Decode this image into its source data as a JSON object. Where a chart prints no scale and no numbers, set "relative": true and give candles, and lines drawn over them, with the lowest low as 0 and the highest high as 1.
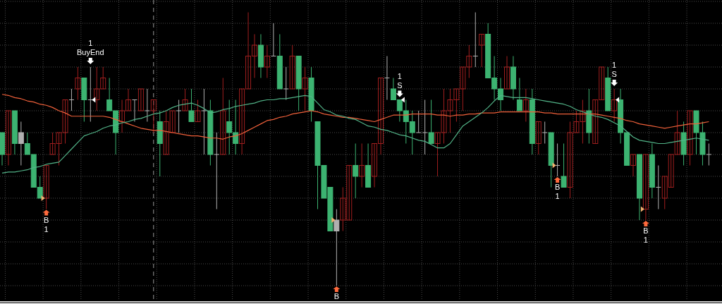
{
  "chart_data": {
    "type": "candlestick",
    "relative": true,
    "grid": true,
    "categories": [
      null,
      null,
      null,
      null,
      null,
      null,
      null,
      null,
      null,
      null,
      null,
      null,
      null,
      null,
      null,
      null,
      null,
      null,
      null,
      null,
      null,
      null,
      null,
      null,
      null,
      null,
      null,
      null,
      null,
      null,
      null,
      null,
      null,
      null,
      null,
      null,
      null,
      null,
      null,
      null,
      null,
      null,
      null,
      null,
      null,
      null,
      null,
      null,
      null,
      null,
      null,
      null,
      null,
      null,
      null,
      null,
      null,
      null,
      null,
      null,
      null,
      null,
      null,
      null,
      null,
      null,
      null,
      null,
      null,
      null,
      null,
      null,
      null,
      null,
      null,
      null,
      null,
      null,
      null,
      null,
      null,
      null,
      null,
      null,
      null,
      null,
      null,
      null,
      null,
      null,
      null,
      null,
      null,
      null,
      null,
      null,
      null,
      null,
      null,
      null,
      null,
      null,
      null,
      null,
      null,
      null,
      null,
      null,
      null,
      null,
      null,
      null,
      null
    ],
    "ohlc": [
      [
        0.56,
        0.56,
        0.44,
        0.48
      ],
      [
        0.48,
        0.64,
        0.44,
        0.64
      ],
      [
        0.64,
        0.64,
        0.48,
        0.52
      ],
      [
        0.56,
        0.6,
        0.44,
        0.52
      ],
      [
        0.52,
        0.56,
        0.48,
        0.48
      ],
      [
        0.48,
        0.48,
        0.36,
        0.36
      ],
      [
        0.36,
        0.4,
        0.32,
        0.32
      ],
      [
        0.32,
        0.44,
        0.28,
        0.44
      ],
      [
        0.48,
        0.56,
        0.48,
        0.52
      ],
      [
        0.52,
        0.56,
        0.44,
        0.56
      ],
      [
        0.56,
        0.68,
        0.52,
        0.68
      ],
      [
        0.68,
        0.72,
        0.64,
        0.68
      ],
      [
        0.72,
        0.8,
        0.68,
        0.76
      ],
      [
        0.76,
        0.76,
        0.6,
        0.68
      ],
      [
        0.68,
        0.8,
        0.6,
        0.68
      ],
      [
        0.68,
        0.8,
        0.64,
        0.72
      ],
      [
        0.72,
        0.8,
        0.72,
        0.76
      ],
      [
        0.68,
        0.76,
        0.64,
        0.64
      ],
      [
        0.64,
        0.64,
        0.48,
        0.56
      ],
      [
        0.6,
        0.68,
        0.56,
        0.64
      ],
      [
        0.64,
        0.72,
        0.64,
        0.68
      ],
      [
        0.68,
        0.68,
        0.6,
        0.68
      ],
      [
        0.64,
        0.72,
        0.64,
        0.72
      ],
      [
        0.64,
        0.72,
        0.6,
        0.64
      ],
      [
        0.64,
        0.68,
        0.56,
        0.68
      ],
      [
        0.6,
        0.64,
        0.4,
        0.52
      ],
      [
        0.48,
        0.64,
        0.48,
        0.6
      ],
      [
        0.56,
        0.64,
        0.56,
        0.64
      ],
      [
        0.64,
        0.68,
        0.56,
        0.64
      ],
      [
        0.64,
        0.72,
        0.64,
        0.68
      ],
      [
        0.64,
        0.72,
        0.6,
        0.6
      ],
      [
        0.6,
        0.68,
        0.6,
        0.64
      ],
      [
        0.64,
        0.72,
        0.48,
        0.64
      ],
      [
        0.64,
        0.68,
        0.44,
        0.48
      ],
      [
        0.48,
        0.56,
        0.28,
        0.48
      ],
      [
        0.48,
        0.76,
        0.48,
        0.64
      ],
      [
        0.6,
        0.68,
        0.48,
        0.56
      ],
      [
        0.56,
        0.68,
        0.48,
        0.52
      ],
      [
        0.52,
        0.72,
        0.48,
        0.72
      ],
      [
        0.72,
        1,
        0.72,
        0.84
      ],
      [
        0.84,
        0.92,
        0.76,
        0.88
      ],
      [
        0.88,
        0.92,
        0.76,
        0.8
      ],
      [
        0.8,
        0.88,
        0.76,
        0.84
      ],
      [
        0.84,
        0.96,
        0.84,
        0.84
      ],
      [
        0.84,
        0.92,
        0.72,
        0.72
      ],
      [
        0.72,
        0.8,
        0.68,
        0.72
      ],
      [
        0.72,
        0.88,
        0.72,
        0.84
      ],
      [
        0.84,
        0.84,
        0.64,
        0.72
      ],
      [
        0.72,
        0.8,
        0.64,
        0.76
      ],
      [
        0.76,
        0.8,
        0.6,
        0.64
      ],
      [
        0.6,
        0.6,
        0.28,
        0.44
      ],
      [
        0.44,
        0.44,
        0.32,
        0.32
      ],
      [
        0.36,
        0.36,
        0.2,
        0.2
      ],
      [
        0.24,
        0.28,
        0,
        0.2
      ],
      [
        0.24,
        0.36,
        0.2,
        0.32
      ],
      [
        0.24,
        0.44,
        0.24,
        0.44
      ],
      [
        0.44,
        0.52,
        0.32,
        0.4
      ],
      [
        0.4,
        0.52,
        0.36,
        0.44
      ],
      [
        0.44,
        0.52,
        0.36,
        0.36
      ],
      [
        0.4,
        0.52,
        0.36,
        0.52
      ],
      [
        0.52,
        0.76,
        0.48,
        0.76
      ],
      [
        0.76,
        0.84,
        0.68,
        0.76
      ],
      [
        0.72,
        0.76,
        0.68,
        0.68
      ],
      [
        0.68,
        0.68,
        0.6,
        0.64
      ],
      [
        0.64,
        0.68,
        0.52,
        0.6
      ],
      [
        0.6,
        0.64,
        0.48,
        0.56
      ],
      [
        0.56,
        0.64,
        0.56,
        0.56
      ],
      [
        0.56,
        0.68,
        0.48,
        0.56
      ],
      [
        0.56,
        0.68,
        0.52,
        0.52
      ],
      [
        0.52,
        0.56,
        0.4,
        0.56
      ],
      [
        0.56,
        0.72,
        0.52,
        0.64
      ],
      [
        0.64,
        0.72,
        0.56,
        0.68
      ],
      [
        0.68,
        0.72,
        0.6,
        0.72
      ],
      [
        0.72,
        0.8,
        0.64,
        0.8
      ],
      [
        0.8,
        0.88,
        0.76,
        0.84
      ],
      [
        0.84,
        1,
        0.8,
        0.84
      ],
      [
        0.88,
        0.92,
        0.8,
        0.92
      ],
      [
        0.92,
        0.96,
        0.76,
        0.76
      ],
      [
        0.76,
        0.84,
        0.68,
        0.72
      ],
      [
        0.72,
        0.76,
        0.64,
        0.68
      ],
      [
        0.72,
        0.84,
        0.72,
        0.8
      ],
      [
        0.8,
        0.84,
        0.68,
        0.72
      ],
      [
        0.68,
        0.76,
        0.64,
        0.64
      ],
      [
        0.64,
        0.72,
        0.6,
        0.68
      ],
      [
        0.68,
        0.72,
        0.48,
        0.52
      ],
      [
        0.52,
        0.6,
        0.48,
        0.6
      ],
      [
        0.56,
        0.6,
        0.52,
        0.56
      ],
      [
        0.56,
        0.56,
        0.36,
        0.44
      ],
      [
        0.44,
        0.52,
        0.4,
        0.44
      ],
      [
        0.4,
        0.52,
        0.36,
        0.36
      ],
      [
        0.36,
        0.6,
        0.32,
        0.56
      ],
      [
        0.56,
        0.64,
        0.56,
        0.6
      ],
      [
        0.6,
        0.68,
        0.52,
        0.64
      ],
      [
        0.64,
        0.72,
        0.52,
        0.56
      ],
      [
        0.52,
        0.68,
        0.52,
        0.68
      ],
      [
        0.68,
        0.8,
        0.68,
        0.8
      ],
      [
        0.76,
        0.8,
        0.64,
        0.64
      ],
      [
        0.64,
        0.72,
        0.6,
        0.68
      ],
      [
        0.68,
        0.72,
        0.52,
        0.56
      ],
      [
        0.56,
        0.56,
        0.44,
        0.44
      ],
      [
        0.44,
        0.48,
        0.4,
        0.48
      ],
      [
        0.48,
        0.48,
        0.24,
        0.32
      ],
      [
        0.28,
        0.48,
        0.24,
        0.48
      ],
      [
        0.48,
        0.52,
        0.32,
        0.36
      ],
      [
        0.36,
        0.44,
        0.28,
        0.36
      ],
      [
        0.32,
        0.4,
        0.28,
        0.4
      ],
      [
        0.36,
        0.48,
        0.36,
        0.48
      ],
      [
        0.48,
        0.64,
        0.48,
        0.56
      ],
      [
        0.56,
        0.6,
        0.44,
        0.48
      ],
      [
        0.48,
        0.64,
        0.44,
        0.64
      ],
      [
        0.64,
        0.64,
        0.48,
        0.56
      ],
      [
        0.56,
        0.6,
        0.44,
        0.48
      ],
      [
        0.48,
        0.52,
        0.44,
        0.48
      ]
    ],
    "colors": [
      "#3cb371",
      "#a01e1e",
      "#3cb371",
      "#b0b0b0",
      "#3cb371",
      "#3cb371",
      "#3cb371",
      "#a01e1e",
      "#a01e1e",
      "#a01e1e",
      "#a01e1e",
      "#b0b0b0",
      "#a01e1e",
      "#3cb371",
      "#b0b0b0",
      "#a01e1e",
      "#a01e1e",
      "#3cb371",
      "#3cb371",
      "#a01e1e",
      "#a01e1e",
      "#b0b0b0",
      "#a01e1e",
      "#b0b0b0",
      "#a01e1e",
      "#3cb371",
      "#a01e1e",
      "#a01e1e",
      "#b0b0b0",
      "#a01e1e",
      "#3cb371",
      "#a01e1e",
      "#b0b0b0",
      "#3cb371",
      "#b0b0b0",
      "#a01e1e",
      "#3cb371",
      "#3cb371",
      "#a01e1e",
      "#a01e1e",
      "#a01e1e",
      "#3cb371",
      "#a01e1e",
      "#b0b0b0",
      "#3cb371",
      "#b0b0b0",
      "#a01e1e",
      "#3cb371",
      "#a01e1e",
      "#3cb371",
      "#3cb371",
      "#3cb371",
      "#3cb371",
      "#b0b0b0",
      "#a01e1e",
      "#a01e1e",
      "#3cb371",
      "#a01e1e",
      "#3cb371",
      "#a01e1e",
      "#a01e1e",
      "#b0b0b0",
      "#3cb371",
      "#3cb371",
      "#3cb371",
      "#3cb371",
      "#b0b0b0",
      "#b0b0b0",
      "#3cb371",
      "#a01e1e",
      "#a01e1e",
      "#a01e1e",
      "#a01e1e",
      "#a01e1e",
      "#a01e1e",
      "#b0b0b0",
      "#a01e1e",
      "#3cb371",
      "#3cb371",
      "#3cb371",
      "#a01e1e",
      "#3cb371",
      "#3cb371",
      "#a01e1e",
      "#3cb371",
      "#a01e1e",
      "#b0b0b0",
      "#3cb371",
      "#b0b0b0",
      "#3cb371",
      "#a01e1e",
      "#a01e1e",
      "#a01e1e",
      "#3cb371",
      "#a01e1e",
      "#a01e1e",
      "#3cb371",
      "#a01e1e",
      "#3cb371",
      "#3cb371",
      "#a01e1e",
      "#3cb371",
      "#a01e1e",
      "#3cb371",
      "#b0b0b0",
      "#a01e1e",
      "#a01e1e",
      "#a01e1e",
      "#3cb371",
      "#a01e1e",
      "#3cb371",
      "#3cb371",
      "#b0b0b0"
    ],
    "series": [
      {
        "type": "line",
        "color": "#f0603a",
        "values": [
          0.7,
          0.696,
          0.688,
          0.684,
          0.676,
          0.672,
          0.664,
          0.66,
          0.652,
          0.64,
          0.632,
          0.62,
          0.62,
          0.62,
          0.62,
          0.62,
          0.62,
          0.616,
          0.608,
          0.6,
          0.592,
          0.584,
          0.576,
          0.572,
          0.568,
          0.568,
          0.564,
          0.56,
          0.556,
          0.552,
          0.548,
          0.548,
          0.544,
          0.54,
          0.54,
          0.536,
          0.544,
          0.548,
          0.556,
          0.568,
          0.58,
          0.592,
          0.604,
          0.608,
          0.616,
          0.62,
          0.628,
          0.632,
          0.636,
          0.64,
          0.636,
          0.628,
          0.624,
          0.62,
          0.616,
          0.616,
          0.612,
          0.608,
          0.604,
          0.6,
          0.608,
          0.616,
          0.624,
          0.624,
          0.624,
          0.628,
          0.628,
          0.628,
          0.628,
          0.624,
          0.624,
          0.62,
          0.624,
          0.624,
          0.628,
          0.628,
          0.632,
          0.632,
          0.632,
          0.636,
          0.636,
          0.636,
          0.636,
          0.636,
          0.636,
          0.636,
          0.632,
          0.632,
          0.628,
          0.628,
          0.628,
          0.628,
          0.628,
          0.628,
          0.628,
          0.624,
          0.62,
          0.616,
          0.612,
          0.604,
          0.6,
          0.592,
          0.588,
          0.584,
          0.58,
          0.576,
          0.58,
          0.584,
          0.588,
          0.592,
          0.592,
          0.596,
          0.6
        ]
      },
      {
        "type": "line",
        "color": "#52b488",
        "values": [
          0.412,
          0.416,
          0.416,
          0.42,
          0.424,
          0.432,
          0.436,
          0.444,
          0.448,
          0.452,
          0.476,
          0.5,
          0.524,
          0.548,
          0.556,
          0.564,
          0.576,
          0.584,
          0.588,
          0.596,
          0.6,
          0.608,
          0.612,
          0.62,
          0.628,
          0.632,
          0.64,
          0.652,
          0.66,
          0.664,
          0.668,
          0.66,
          0.648,
          0.632,
          0.636,
          0.644,
          0.648,
          0.656,
          0.66,
          0.664,
          0.668,
          0.676,
          0.68,
          0.68,
          0.684,
          0.684,
          0.688,
          0.692,
          0.696,
          0.692,
          0.668,
          0.644,
          0.636,
          0.624,
          0.62,
          0.612,
          0.608,
          0.596,
          0.584,
          0.58,
          0.572,
          0.568,
          0.56,
          0.552,
          0.548,
          0.54,
          0.532,
          0.528,
          0.516,
          0.504,
          0.504,
          0.52,
          0.552,
          0.584,
          0.6,
          0.616,
          0.632,
          0.652,
          0.676,
          0.696,
          0.692,
          0.688,
          0.688,
          0.688,
          0.684,
          0.68,
          0.676,
          0.672,
          0.668,
          0.664,
          0.656,
          0.644,
          0.636,
          0.628,
          0.62,
          0.616,
          0.608,
          0.596,
          0.584,
          0.564,
          0.544,
          0.532,
          0.528,
          0.524,
          0.52,
          0.52,
          0.524,
          0.528,
          0.532,
          0.536,
          0.54,
          0.536,
          0.532
        ]
      }
    ],
    "annotations": [
      "B\n1",
      "1\nBuyEnd",
      "B",
      "1\nS",
      "B\n1",
      "1\nS",
      "B\n1"
    ]
  }
}
